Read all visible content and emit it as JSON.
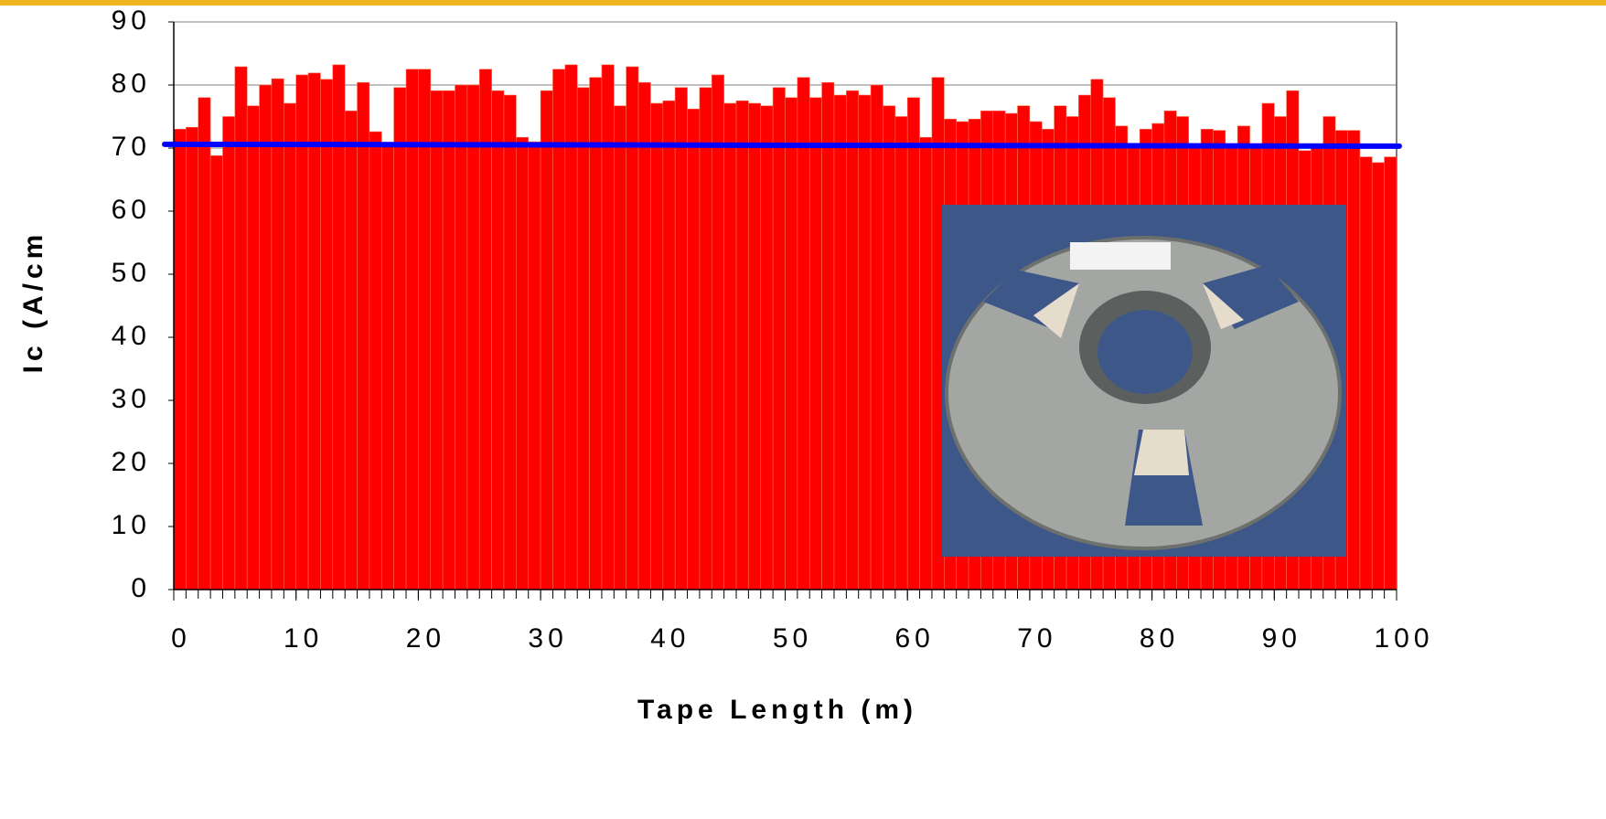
{
  "chart_data": {
    "type": "histogram",
    "x_label": "Tape Length (m)",
    "y_label": "Ic (A/cm",
    "bins": [
      0,
      1,
      2,
      3,
      4,
      5,
      6,
      7,
      8,
      9,
      10,
      11,
      12,
      13,
      14,
      15,
      16,
      17,
      18,
      19,
      20,
      21,
      22,
      23,
      24,
      25,
      26,
      27,
      28,
      29,
      30,
      31,
      32,
      33,
      34,
      35,
      36,
      37,
      38,
      39,
      40,
      41,
      42,
      43,
      44,
      45,
      46,
      47,
      48,
      49,
      50,
      51,
      52,
      53,
      54,
      55,
      56,
      57,
      58,
      59,
      60,
      61,
      62,
      63,
      64,
      65,
      66,
      67,
      68,
      69,
      70,
      71,
      72,
      73,
      74,
      75,
      76,
      77,
      78,
      79,
      80,
      81,
      82,
      83,
      84,
      85,
      86,
      87,
      88,
      89,
      90,
      91,
      92,
      93,
      94,
      95,
      96,
      97,
      98,
      99,
      100
    ],
    "values": [
      73,
      73.3,
      78,
      68.8,
      75,
      82.9,
      76.7,
      80,
      81,
      77.1,
      81.6,
      81.9,
      80.9,
      83.2,
      75.9,
      80.4,
      72.6,
      70.8,
      79.6,
      82.5,
      82.5,
      79.1,
      79.1,
      80,
      80,
      82.5,
      79.1,
      78.4,
      71.7,
      71,
      79.1,
      82.5,
      83.2,
      79.6,
      81.2,
      83.2,
      76.7,
      82.9,
      80.4,
      77.1,
      77.5,
      79.6,
      76.2,
      79.6,
      81.6,
      77.1,
      77.5,
      77.1,
      76.7,
      79.6,
      78,
      81.2,
      78,
      80.4,
      78.4,
      79.1,
      78.4,
      80,
      76.7,
      75,
      78,
      71.7,
      81.2,
      74.6,
      74.2,
      74.6,
      75.9,
      75.9,
      75.5,
      76.7,
      74.2,
      73,
      76.7,
      75,
      78.4,
      80.9,
      78,
      73.5,
      70.3,
      73,
      73.9,
      75.9,
      75,
      70.3,
      73,
      72.8,
      70.3,
      73.5,
      70,
      77.1,
      75,
      79.1,
      69.6,
      70.3,
      75,
      72.8,
      72.8,
      68.6,
      67.7,
      68.6
    ],
    "color": "#ff0000",
    "reference_line": {
      "values": [
        70.6,
        70.3
      ],
      "color": "#0000ff"
    },
    "xlim": [
      0,
      100
    ],
    "xticks": [
      0,
      10,
      20,
      30,
      40,
      50,
      60,
      70,
      80,
      90,
      100
    ],
    "ylim": [
      0,
      90
    ],
    "yticks": [
      0,
      10,
      20,
      30,
      40,
      50,
      60,
      70,
      80,
      90
    ],
    "grid": true
  }
}
